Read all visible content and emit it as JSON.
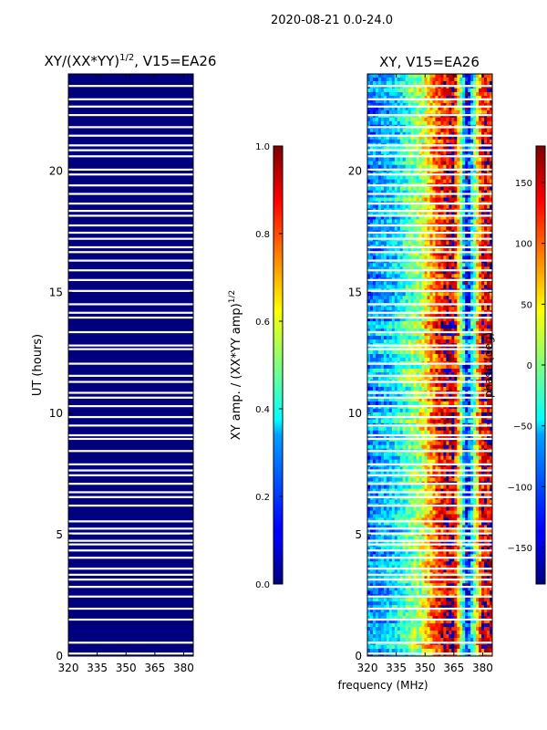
{
  "figure_title": "2020-08-21 0.0-24.0",
  "shared_xlabel": "frequency (MHz)",
  "colors": {
    "background_panel": "#00007f",
    "gap": "#ffffff",
    "axis": "#000000"
  },
  "chart_data": [
    {
      "type": "heatmap",
      "id": "amplitude",
      "title": "XY/(XX*YY)",
      "title_superscript": "1/2",
      "title_suffix": ", V15=EA26",
      "xlabel": "",
      "ylabel": "UT (hours)",
      "xlim": [
        320,
        385
      ],
      "ylim": [
        0,
        24
      ],
      "xticks": [
        320,
        335,
        350,
        365,
        380
      ],
      "yticks": [
        0,
        5,
        10,
        15,
        20
      ],
      "colorbar": {
        "label": "XY amp. / (XX*YY amp)",
        "label_superscript": "1/2",
        "range": [
          0.0,
          1.0
        ],
        "ticks": [
          "0.0",
          "0.2",
          "0.4",
          "0.6",
          "0.8",
          "1.0"
        ],
        "tick_values": [
          0.0,
          0.2,
          0.4,
          0.6,
          0.8,
          1.0
        ],
        "colormap": "jet"
      },
      "dominant_value": 0.0
    },
    {
      "type": "heatmap",
      "id": "phase",
      "title": "XY, V15=EA26",
      "xlabel": "frequency (MHz)",
      "ylabel": "",
      "xlim": [
        320,
        385
      ],
      "ylim": [
        0,
        24
      ],
      "xticks": [
        320,
        335,
        350,
        365,
        380
      ],
      "yticks": [
        0,
        5,
        10,
        15,
        20
      ],
      "colorbar": {
        "label": "phase (deg)",
        "range": [
          -180,
          180
        ],
        "ticks": [
          "150",
          "100",
          "50",
          "0",
          "−50",
          "−100",
          "−150"
        ],
        "tick_values": [
          150,
          100,
          50,
          0,
          -50,
          -100,
          -150
        ],
        "colormap": "jet"
      },
      "phase_profile_by_frequency": [
        {
          "freq_mhz": 320,
          "phase_deg": -90
        },
        {
          "freq_mhz": 335,
          "phase_deg": -50
        },
        {
          "freq_mhz": 348,
          "phase_deg": 20
        },
        {
          "freq_mhz": 357,
          "phase_deg": 120
        },
        {
          "freq_mhz": 365,
          "phase_deg": 170
        },
        {
          "freq_mhz": 372,
          "phase_deg": -140
        },
        {
          "freq_mhz": 380,
          "phase_deg": 150
        }
      ]
    }
  ],
  "flagged_ut_hours": [
    0.1,
    0.55,
    1.5,
    1.95,
    2.45,
    2.85,
    3.15,
    3.35,
    3.6,
    4.05,
    4.35,
    4.6,
    4.75,
    5.05,
    5.25,
    5.55,
    6.2,
    6.55,
    6.75,
    7.1,
    7.45,
    7.65,
    7.9,
    8.45,
    8.95,
    9.1,
    9.5,
    9.85,
    10.3,
    10.65,
    10.85,
    11.3,
    11.55,
    12.05,
    12.65,
    12.8,
    13.35,
    13.95,
    14.15,
    14.5,
    15.05,
    15.5,
    15.9,
    16.3,
    16.65,
    16.85,
    17.2,
    17.45,
    17.75,
    18.15,
    18.35,
    18.65,
    19.05,
    19.4,
    19.85,
    20.05,
    20.6,
    20.85,
    21.05,
    21.45,
    21.8,
    22.3,
    22.65,
    22.95,
    23.5
  ]
}
